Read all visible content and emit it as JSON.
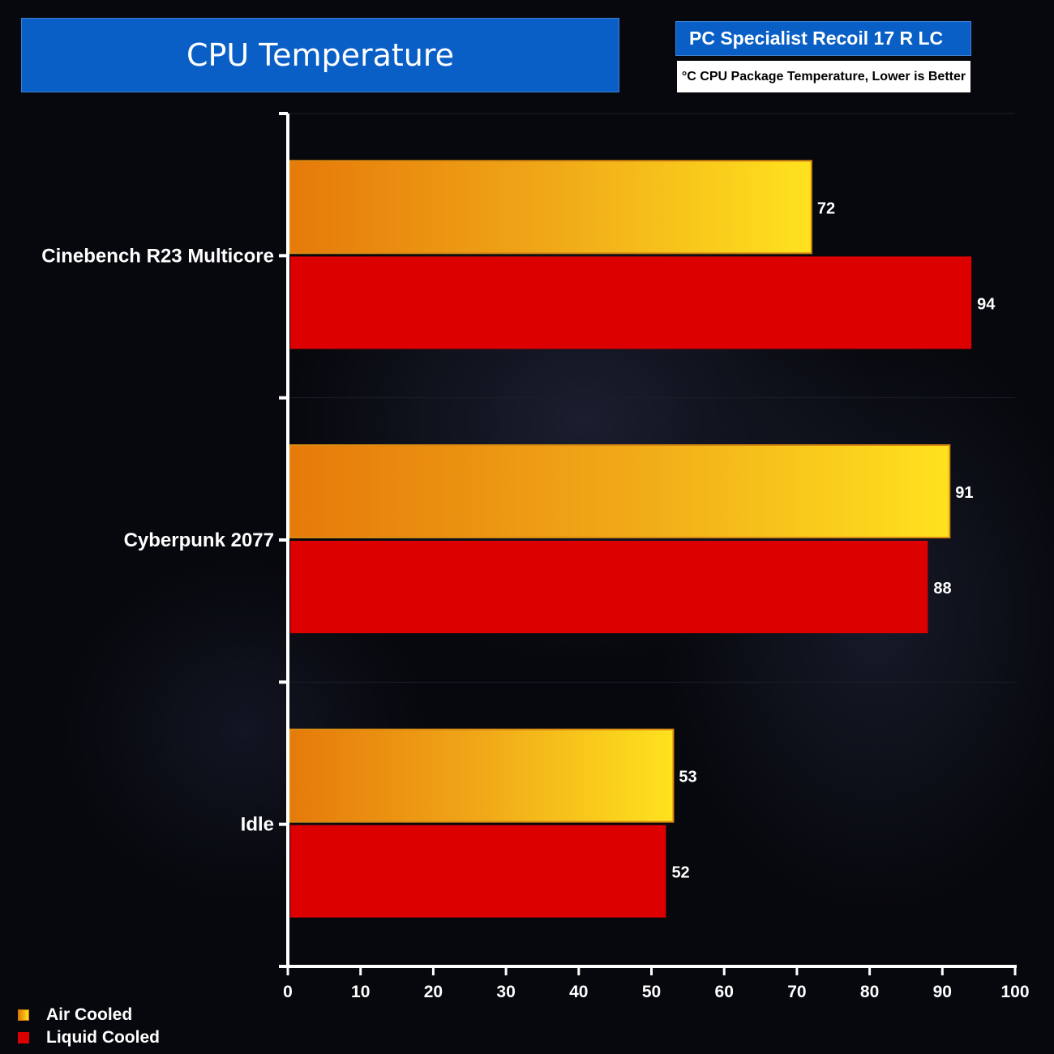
{
  "header": {
    "title": "CPU Temperature",
    "subtitle": "PC Specialist Recoil 17 R LC",
    "note": "°C CPU Package Temperature, Lower is Better"
  },
  "legend": {
    "items": [
      {
        "label": "Air Cooled",
        "color": "#f5a623"
      },
      {
        "label": "Liquid Cooled",
        "color": "#dd0000"
      }
    ]
  },
  "chart_data": {
    "type": "bar",
    "orientation": "horizontal",
    "title": "CPU Temperature",
    "subtitle": "PC Specialist Recoil 17 R LC",
    "xlabel": "°C CPU Package Temperature, Lower is Better",
    "ylabel": "",
    "categories": [
      "Cinebench R23 Multicore",
      "Cyberpunk 2077",
      "Idle"
    ],
    "series": [
      {
        "name": "Air Cooled",
        "values": [
          72,
          91,
          53
        ],
        "color": "#f5a623"
      },
      {
        "name": "Liquid Cooled",
        "values": [
          94,
          88,
          52
        ],
        "color": "#dd0000"
      }
    ],
    "xlim": [
      0,
      100
    ],
    "xticks": [
      0,
      10,
      20,
      30,
      40,
      50,
      60,
      70,
      80,
      90,
      100
    ],
    "grid": false,
    "legend_position": "bottom-left"
  }
}
